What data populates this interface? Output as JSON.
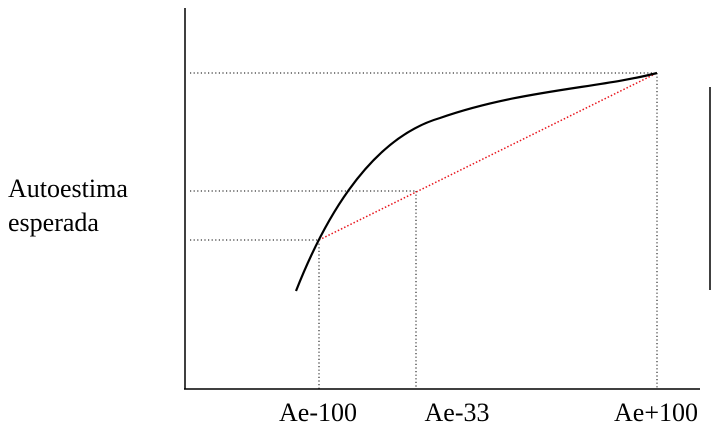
{
  "y_label": {
    "line1": "Autoestima",
    "line2": "esperada"
  },
  "x_ticks": [
    "Ae-100",
    "Ae-33",
    "Ae+100"
  ],
  "colors": {
    "axis": "#000000",
    "curve": "#000000",
    "guides": "#000000",
    "chord": "#e8141c"
  }
}
